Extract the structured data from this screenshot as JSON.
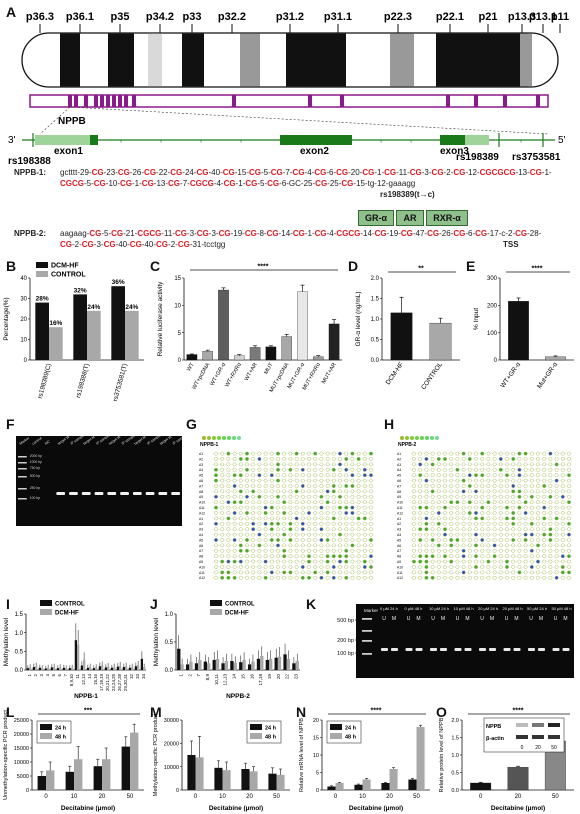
{
  "panelA": {
    "letter": "A",
    "bands": [
      "p36.3",
      "p36.1",
      "p35",
      "p34.2",
      "p33",
      "p32.2",
      "p31.2",
      "p31.1",
      "p22.3",
      "p22.1",
      "p21",
      "p13.3",
      "p13.1",
      "p11"
    ],
    "gene": "NPPB",
    "snp_left": "rs198388",
    "snp_mid": "rs198389",
    "snp_right": "rs3753581",
    "three_prime": "3'",
    "five_prime": "5'",
    "exons": [
      "exon1",
      "exon2",
      "exon3"
    ],
    "nppb1_label": "NPPB-1:",
    "nppb1_line1": "gctttt-29-CG-23-CG-26-CG-22-CG-24-CG-40-CG-15-CG-5-CG-7-CG-4-CG-6-CG-20-CG-1-CG-11-CG-3-CG-2-CG-12-CGCGCG-13-CG-1-",
    "nppb1_line2": "CGCG-5-CG-10-CG-1-CG-13-CG-7-CGCG-4-CG-1-CG-5-CG-6-GC-25-CG-25-CG-15-tg-12-gaaagg",
    "nppb1_mark": "rs198389(t→c)",
    "tf_boxes": [
      "GR-α",
      "AR",
      "RXR-α"
    ],
    "nppb2_label": "NPPB-2:",
    "nppb2_line1": "aagaag-CG-5-CG-21-CGCG-11-CG-3-CG-3-CG-19-CG-8-CG-14-CG-1-CG-4-CGCG-14-CG-19-CG-47-CG-26-CG-6-CG-17-c-2-CG-28-",
    "nppb2_line2": "CG-2-CG-3-CG-40-CG-40-CG-2-CG-31-tcctgg",
    "tss": "TSS"
  },
  "chart_data": [
    {
      "panel": "B",
      "type": "bar",
      "categories": [
        "rs198389(C)",
        "rs198388(T)",
        "rs3753581(T)"
      ],
      "series": [
        {
          "name": "DCM-HF",
          "values": [
            28,
            32,
            36
          ],
          "color": "#111111"
        },
        {
          "name": "CONTROL",
          "values": [
            16,
            24,
            24
          ],
          "color": "#a8a8a8"
        }
      ],
      "value_labels": [
        [
          "28%",
          "16%"
        ],
        [
          "32%",
          "24%"
        ],
        [
          "36%",
          "24%"
        ]
      ],
      "ylabel": "Percentage(%)",
      "ylim": [
        0,
        40
      ],
      "yticks": [
        "0",
        "10",
        "20",
        "30",
        "40"
      ]
    },
    {
      "panel": "C",
      "type": "bar",
      "categories": [
        "WT",
        "WT+pcDNA",
        "WT+GR-α",
        "WT+RXRα",
        "WT+AR",
        "MUT",
        "MUT+pcDNA",
        "MUT+GR-α",
        "MUT+RXRα",
        "MUT+AR"
      ],
      "values": [
        1.0,
        1.6,
        12.8,
        0.8,
        2.3,
        2.4,
        4.3,
        12.5,
        0.6,
        6.6
      ],
      "errors": [
        0.1,
        0.2,
        0.4,
        0.2,
        0.3,
        0.2,
        0.4,
        1.2,
        0.2,
        0.8
      ],
      "colors": [
        "#111111",
        "#a8a8a8",
        "#5e5e5e",
        "#d0d0d0",
        "#7a7a7a",
        "#111111",
        "#a8a8a8",
        "#e8e8e8",
        "#9a9a9a",
        "#222222"
      ],
      "ylabel": "Relative luciferase activity",
      "ylim": [
        0,
        15
      ],
      "yticks": [
        "0",
        "5",
        "10",
        "15"
      ],
      "significance": "****"
    },
    {
      "panel": "D",
      "type": "bar",
      "categories": [
        "DCM-HF",
        "CONTROL"
      ],
      "values": [
        1.15,
        0.9
      ],
      "errors": [
        0.38,
        0.12
      ],
      "colors": [
        "#111111",
        "#a8a8a8"
      ],
      "ylabel": "GR-α level (ng/mL)",
      "ylim": [
        0,
        2.0
      ],
      "yticks": [
        "0.0",
        "0.5",
        "1.0",
        "1.5",
        "2.0"
      ],
      "significance": "**"
    },
    {
      "panel": "E",
      "type": "bar",
      "categories": [
        "WT+GR-α",
        "Mut+GR-α"
      ],
      "values": [
        215,
        12
      ],
      "errors": [
        12,
        3
      ],
      "colors": [
        "#111111",
        "#a8a8a8"
      ],
      "ylabel": "% Input",
      "ylim": [
        0,
        300
      ],
      "yticks": [
        "0",
        "100",
        "200",
        "300"
      ],
      "significance": "****"
    },
    {
      "panel": "I",
      "type": "bar",
      "title": "NPPB-1",
      "categories": [
        "1",
        "2",
        "3",
        "4",
        "5",
        "6",
        "7",
        "8,9,10",
        "11",
        "12,13",
        "14",
        "15,16",
        "17,18,19",
        "20,21,22",
        "23,24,25",
        "26,27,28",
        "29,30,31",
        "32",
        "33",
        "34"
      ],
      "series": [
        {
          "name": "CONTROL",
          "values": [
            0.05,
            0.08,
            0.06,
            0.04,
            0.07,
            0.05,
            0.06,
            0.05,
            0.8,
            0.12,
            0.06,
            0.05,
            0.1,
            0.07,
            0.06,
            0.09,
            0.08,
            0.06,
            0.1,
            0.3
          ],
          "color": "#111111"
        },
        {
          "name": "DCM-HF",
          "values": [
            0.07,
            0.1,
            0.05,
            0.06,
            0.08,
            0.07,
            0.05,
            0.06,
            0.68,
            0.28,
            0.08,
            0.07,
            0.12,
            0.09,
            0.08,
            0.11,
            0.1,
            0.08,
            0.13,
            0.08
          ],
          "color": "#a8a8a8"
        }
      ],
      "ylabel": "Methylation level",
      "ylim": [
        0,
        1.5
      ],
      "yticks": [
        "0.0",
        "0.5",
        "1.0",
        "1.5"
      ]
    },
    {
      "panel": "J",
      "type": "bar",
      "title": "NPPB-2",
      "categories": [
        "1",
        "2",
        "7",
        "8,9",
        "10,11",
        "12,13",
        "14",
        "15",
        "16",
        "17,18",
        "19",
        "20",
        "22",
        "23"
      ],
      "series": [
        {
          "name": "CONTROL",
          "values": [
            0.38,
            0.1,
            0.12,
            0.15,
            0.18,
            0.12,
            0.16,
            0.14,
            0.1,
            0.2,
            0.18,
            0.22,
            0.28,
            0.12
          ],
          "color": "#111111"
        },
        {
          "name": "DCM-HF",
          "values": [
            0.1,
            0.15,
            0.18,
            0.12,
            0.2,
            0.16,
            0.13,
            0.18,
            0.15,
            0.25,
            0.2,
            0.24,
            0.2,
            0.16
          ],
          "color": "#a8a8a8"
        }
      ],
      "ylabel": "Methylation level",
      "ylim": [
        0,
        1.0
      ],
      "yticks": [
        "0.0",
        "0.5",
        "1.0"
      ]
    },
    {
      "panel": "L",
      "type": "bar",
      "categories": [
        "0",
        "10",
        "20",
        "50"
      ],
      "series": [
        {
          "name": "24 h",
          "values": [
            5000,
            6500,
            8500,
            15500
          ],
          "errors": [
            1500,
            2000,
            2500,
            3500
          ],
          "color": "#111111"
        },
        {
          "name": "48 h",
          "values": [
            7000,
            11000,
            11000,
            20500
          ],
          "errors": [
            3000,
            4500,
            4000,
            3000
          ],
          "color": "#a8a8a8"
        }
      ],
      "xlabel": "Decitabine (µmol)",
      "ylabel": "Unmethylation-specific PCR product",
      "ylim": [
        0,
        25000
      ],
      "yticks": [
        "0",
        "5000",
        "10000",
        "15000",
        "20000",
        "25000"
      ],
      "significance": "***"
    },
    {
      "panel": "M",
      "type": "bar",
      "categories": [
        "0",
        "10",
        "20",
        "50"
      ],
      "series": [
        {
          "name": "24 h",
          "values": [
            15000,
            9500,
            9000,
            7000
          ],
          "errors": [
            6000,
            3000,
            2500,
            2500
          ],
          "color": "#111111"
        },
        {
          "name": "48 h",
          "values": [
            14000,
            8500,
            8000,
            6500
          ],
          "errors": [
            9000,
            3500,
            2000,
            2500
          ],
          "color": "#a8a8a8"
        }
      ],
      "xlabel": "Decitabine (µmol)",
      "ylabel": "Methylation-specific PCR product",
      "ylim": [
        0,
        30000
      ],
      "yticks": [
        "0",
        "10000",
        "20000",
        "30000"
      ]
    },
    {
      "panel": "N",
      "type": "bar",
      "categories": [
        "0",
        "10",
        "20",
        "50"
      ],
      "series": [
        {
          "name": "24 h",
          "values": [
            1.0,
            1.5,
            2.0,
            3.0
          ],
          "errors": [
            0.2,
            0.2,
            0.2,
            0.3
          ],
          "color": "#111111"
        },
        {
          "name": "48 h",
          "values": [
            2.0,
            3.0,
            6.0,
            18.0
          ],
          "errors": [
            0.2,
            0.3,
            0.4,
            0.5
          ],
          "color": "#a8a8a8"
        }
      ],
      "xlabel": "Decitabine (µmol)",
      "ylabel": "Relative mRNA level of NPPB",
      "ylim": [
        0,
        20
      ],
      "yticks": [
        "0",
        "5",
        "10",
        "15",
        "20"
      ],
      "significance": "****"
    },
    {
      "panel": "O",
      "type": "bar",
      "categories": [
        "0",
        "20",
        "50"
      ],
      "values": [
        0.2,
        0.65,
        1.4
      ],
      "errors": [
        0.02,
        0.03,
        0.05
      ],
      "colors": [
        "#111111",
        "#555555",
        "#888888"
      ],
      "xlabel": "Decitabine (µmol)",
      "ylabel": "Relative protein level of NPPB",
      "ylim": [
        0,
        2.0
      ],
      "yticks": [
        "0.0",
        "0.5",
        "1.0",
        "1.5",
        "2.0"
      ],
      "significance": "****",
      "inset_labels": [
        "NPPB",
        "β-actin"
      ],
      "inset_x": [
        "0",
        "20",
        "50"
      ]
    }
  ],
  "panelF": {
    "letter": "F",
    "lanes": [
      "Marker",
      "control",
      "NC",
      "target W",
      "IP sample",
      "target M",
      "IP sample",
      "target W",
      "IP sample",
      "target M",
      "IP sample",
      "target W",
      "IP sample"
    ],
    "ladder": [
      "2000 bp",
      "1000 bp",
      "750 bp",
      "500 bp",
      "250 bp",
      "100 bp"
    ]
  },
  "panelG": {
    "letter": "G",
    "title": "NPPB-1",
    "rows": [
      "A1",
      "A2",
      "A3",
      "A4",
      "A5",
      "A6",
      "A7",
      "A8",
      "A9",
      "A10",
      "A11",
      "A12",
      "A1",
      "A2",
      "A3",
      "A4",
      "A5",
      "A6",
      "A7",
      "A8",
      "A9",
      "A10",
      "A11",
      "A12"
    ]
  },
  "panelH": {
    "letter": "H",
    "title": "NPPB-2",
    "rows": [
      "A1",
      "A2",
      "A3",
      "A4",
      "A5",
      "A6",
      "A7",
      "A8",
      "A9",
      "A10",
      "A11",
      "A12",
      "A1",
      "A2",
      "A3",
      "A4",
      "A5",
      "A6",
      "A7",
      "A8",
      "A9",
      "A10",
      "A11",
      "A12"
    ]
  },
  "panelK": {
    "letter": "K",
    "marker": "Marker",
    "groups": [
      "0 µM 24 h",
      "0 µM 48 h",
      "10 µM 24 h",
      "10 µM 48 h",
      "20 µM 24 h",
      "20 µM 48 h",
      "50 µM 24 h",
      "50 µM 48 h"
    ],
    "lane_pair": [
      "U",
      "M"
    ],
    "ladder": [
      "500 bp",
      "200 bp",
      "100 bp"
    ]
  },
  "letters": {
    "B": "B",
    "C": "C",
    "D": "D",
    "E": "E",
    "I": "I",
    "J": "J",
    "L": "L",
    "M": "M",
    "N": "N",
    "O": "O"
  }
}
